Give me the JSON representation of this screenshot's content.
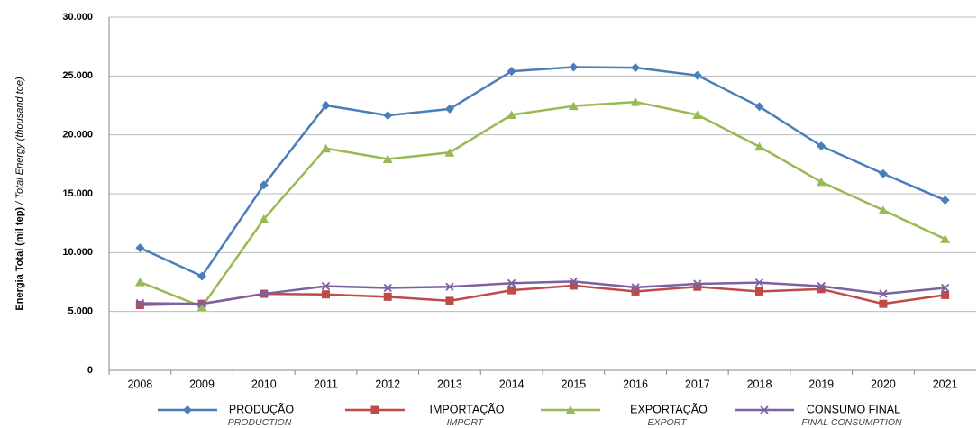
{
  "chart_data": {
    "type": "line",
    "y_label": "Energia Total (mil tep)",
    "y_label_en": "/ Total Energy (thousand toe)",
    "categories": [
      "2008",
      "2009",
      "2010",
      "2011",
      "2012",
      "2013",
      "2014",
      "2015",
      "2016",
      "2017",
      "2018",
      "2019",
      "2020",
      "2021"
    ],
    "series": [
      {
        "name": "PRODUÇÃO",
        "name_en": "PRODUCTION",
        "color": "#4a7ebb",
        "marker": "diamond",
        "values": [
          10400,
          8000,
          15750,
          22500,
          21650,
          22200,
          25400,
          25750,
          25700,
          25050,
          22400,
          19050,
          16700,
          14450
        ]
      },
      {
        "name": "IMPORTAÇÃO",
        "name_en": "IMPORT",
        "color": "#be4b48",
        "marker": "square",
        "values": [
          5550,
          5650,
          6500,
          6450,
          6250,
          5900,
          6800,
          7200,
          6700,
          7100,
          6700,
          6900,
          5650,
          6400
        ]
      },
      {
        "name": "EXPORTAÇÃO",
        "name_en": "EXPORT",
        "color": "#98b954",
        "marker": "triangle",
        "values": [
          7500,
          5400,
          12850,
          18850,
          17950,
          18500,
          21700,
          22450,
          22800,
          21700,
          19000,
          16000,
          13600,
          11150
        ]
      },
      {
        "name": "CONSUMO FINAL",
        "name_en": "FINAL CONSUMPTION",
        "color": "#7d60a0",
        "marker": "x",
        "values": [
          5700,
          5650,
          6500,
          7150,
          7000,
          7100,
          7400,
          7550,
          7050,
          7350,
          7450,
          7150,
          6500,
          7000
        ]
      }
    ],
    "ylim": [
      0,
      30000
    ],
    "yticks": [
      0,
      {
        "value": 5000,
        "label": "5.000"
      },
      {
        "value": 10000,
        "label": "10.000"
      },
      {
        "value": 15000,
        "label": "15.000"
      },
      {
        "value": 20000,
        "label": "20.000"
      },
      {
        "value": 25000,
        "label": "25.000"
      },
      {
        "value": 30000,
        "label": "30.000"
      }
    ],
    "grid": true,
    "legend": "bottom"
  }
}
